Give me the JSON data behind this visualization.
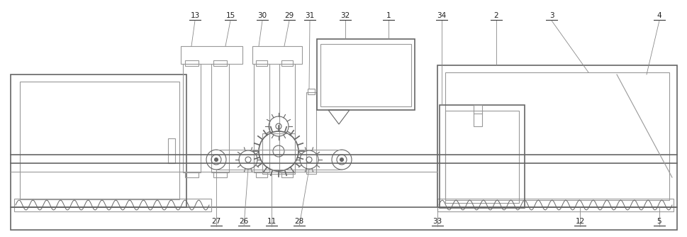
{
  "fig_width": 9.7,
  "fig_height": 3.34,
  "dpi": 100,
  "bg_color": "#ffffff",
  "lc": "#999999",
  "lc2": "#666666"
}
